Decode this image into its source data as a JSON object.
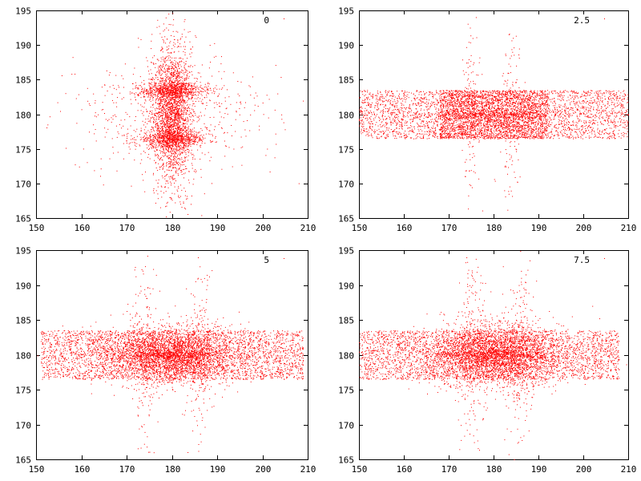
{
  "chart_data": [
    {
      "type": "scatter",
      "title": "0",
      "xlim": [
        150,
        210
      ],
      "ylim": [
        165,
        195
      ],
      "xticks": [
        150,
        160,
        170,
        180,
        190,
        200,
        210
      ],
      "yticks": [
        165,
        170,
        175,
        180,
        185,
        190,
        195
      ],
      "color": "#ff0000",
      "series": [
        {
          "description": "dense cross-shaped cloud: vertical core centered at x≈180, horizontal bands at y≈183.5 and y≈176.5",
          "clusters": [
            {
              "cx": 180,
              "cy": 180,
              "sx": 2.0,
              "sy": 4.5,
              "n": 1800
            },
            {
              "cx": 180,
              "cy": 183.5,
              "sx": 4.0,
              "sy": 0.6,
              "n": 700
            },
            {
              "cx": 180,
              "cy": 176.5,
              "sx": 4.0,
              "sy": 0.6,
              "n": 700
            },
            {
              "cx": 180,
              "cy": 180,
              "sx": 2.5,
              "sy": 7.0,
              "n": 600
            },
            {
              "cx": 180,
              "cy": 180,
              "sx": 12.0,
              "sy": 4.0,
              "n": 500
            }
          ]
        }
      ]
    },
    {
      "type": "scatter",
      "title": "2.5",
      "xlim": [
        150,
        210
      ],
      "ylim": [
        165,
        195
      ],
      "xticks": [
        150,
        160,
        170,
        180,
        190,
        200,
        210
      ],
      "yticks": [
        165,
        170,
        175,
        180,
        185,
        190,
        195
      ],
      "color": "#ff0000",
      "series": [
        {
          "description": "wide horizontal band y≈176.5–183.5 spanning x 150–210, denser core x≈170–190, thin arms near x≈175 and x≈184",
          "clusters": [
            {
              "cx": 180,
              "cy": 180,
              "band": [
                150,
                210,
                176.5,
                183.5
              ],
              "n": 3000
            },
            {
              "cx": 180,
              "cy": 180,
              "band": [
                168,
                192,
                176.5,
                183.5
              ],
              "n": 2500
            },
            {
              "cx": 180,
              "cy": 180,
              "sx": 10.0,
              "sy": 0.3,
              "n": 300
            },
            {
              "cx": 175,
              "cy": 180,
              "sx": 1.2,
              "sy": 6.0,
              "n": 150
            },
            {
              "cx": 184,
              "cy": 180,
              "sx": 1.2,
              "sy": 6.0,
              "n": 150
            }
          ]
        }
      ]
    },
    {
      "type": "scatter",
      "title": "5",
      "xlim": [
        150,
        210
      ],
      "ylim": [
        165,
        195
      ],
      "xticks": [
        150,
        160,
        170,
        180,
        190,
        200,
        210
      ],
      "yticks": [
        165,
        170,
        175,
        180,
        185,
        190,
        195
      ],
      "color": "#ff0000",
      "series": [
        {
          "description": "horizontal band y≈176.5–183.5 over x 151–209, dense center x≈168–190, diagonal arms near x≈174 and x≈186",
          "clusters": [
            {
              "cx": 180,
              "cy": 180,
              "band": [
                151,
                209,
                176.5,
                183.5
              ],
              "n": 3200
            },
            {
              "cx": 180,
              "cy": 180,
              "sx": 7.0,
              "sy": 2.0,
              "n": 3000
            },
            {
              "cx": 180,
              "cy": 180,
              "sx": 8.0,
              "sy": 0.3,
              "n": 300
            },
            {
              "cx": 174,
              "cy": 180,
              "sx": 1.5,
              "sy": 7.0,
              "n": 180
            },
            {
              "cx": 186,
              "cy": 180,
              "sx": 1.5,
              "sy": 7.0,
              "n": 180
            }
          ]
        }
      ]
    },
    {
      "type": "scatter",
      "title": "7.5",
      "xlim": [
        150,
        210
      ],
      "ylim": [
        165,
        195
      ],
      "xticks": [
        150,
        160,
        170,
        180,
        190,
        200,
        210
      ],
      "yticks": [
        165,
        170,
        175,
        180,
        185,
        190,
        195
      ],
      "color": "#ff0000",
      "series": [
        {
          "description": "horizontal band y≈176.5–183.5 over x 150–208, dense center x≈168–190, arms near x≈175 and x≈186 extending to y≈167 and y≈193",
          "clusters": [
            {
              "cx": 180,
              "cy": 180,
              "band": [
                150,
                208,
                176.5,
                183.5
              ],
              "n": 3200
            },
            {
              "cx": 180,
              "cy": 180,
              "sx": 7.0,
              "sy": 2.2,
              "n": 3000
            },
            {
              "cx": 180,
              "cy": 180,
              "sx": 8.0,
              "sy": 0.3,
              "n": 300
            },
            {
              "cx": 175,
              "cy": 180,
              "sx": 1.6,
              "sy": 7.5,
              "n": 220
            },
            {
              "cx": 185.5,
              "cy": 180,
              "sx": 1.6,
              "sy": 7.5,
              "n": 220
            }
          ]
        }
      ]
    }
  ]
}
